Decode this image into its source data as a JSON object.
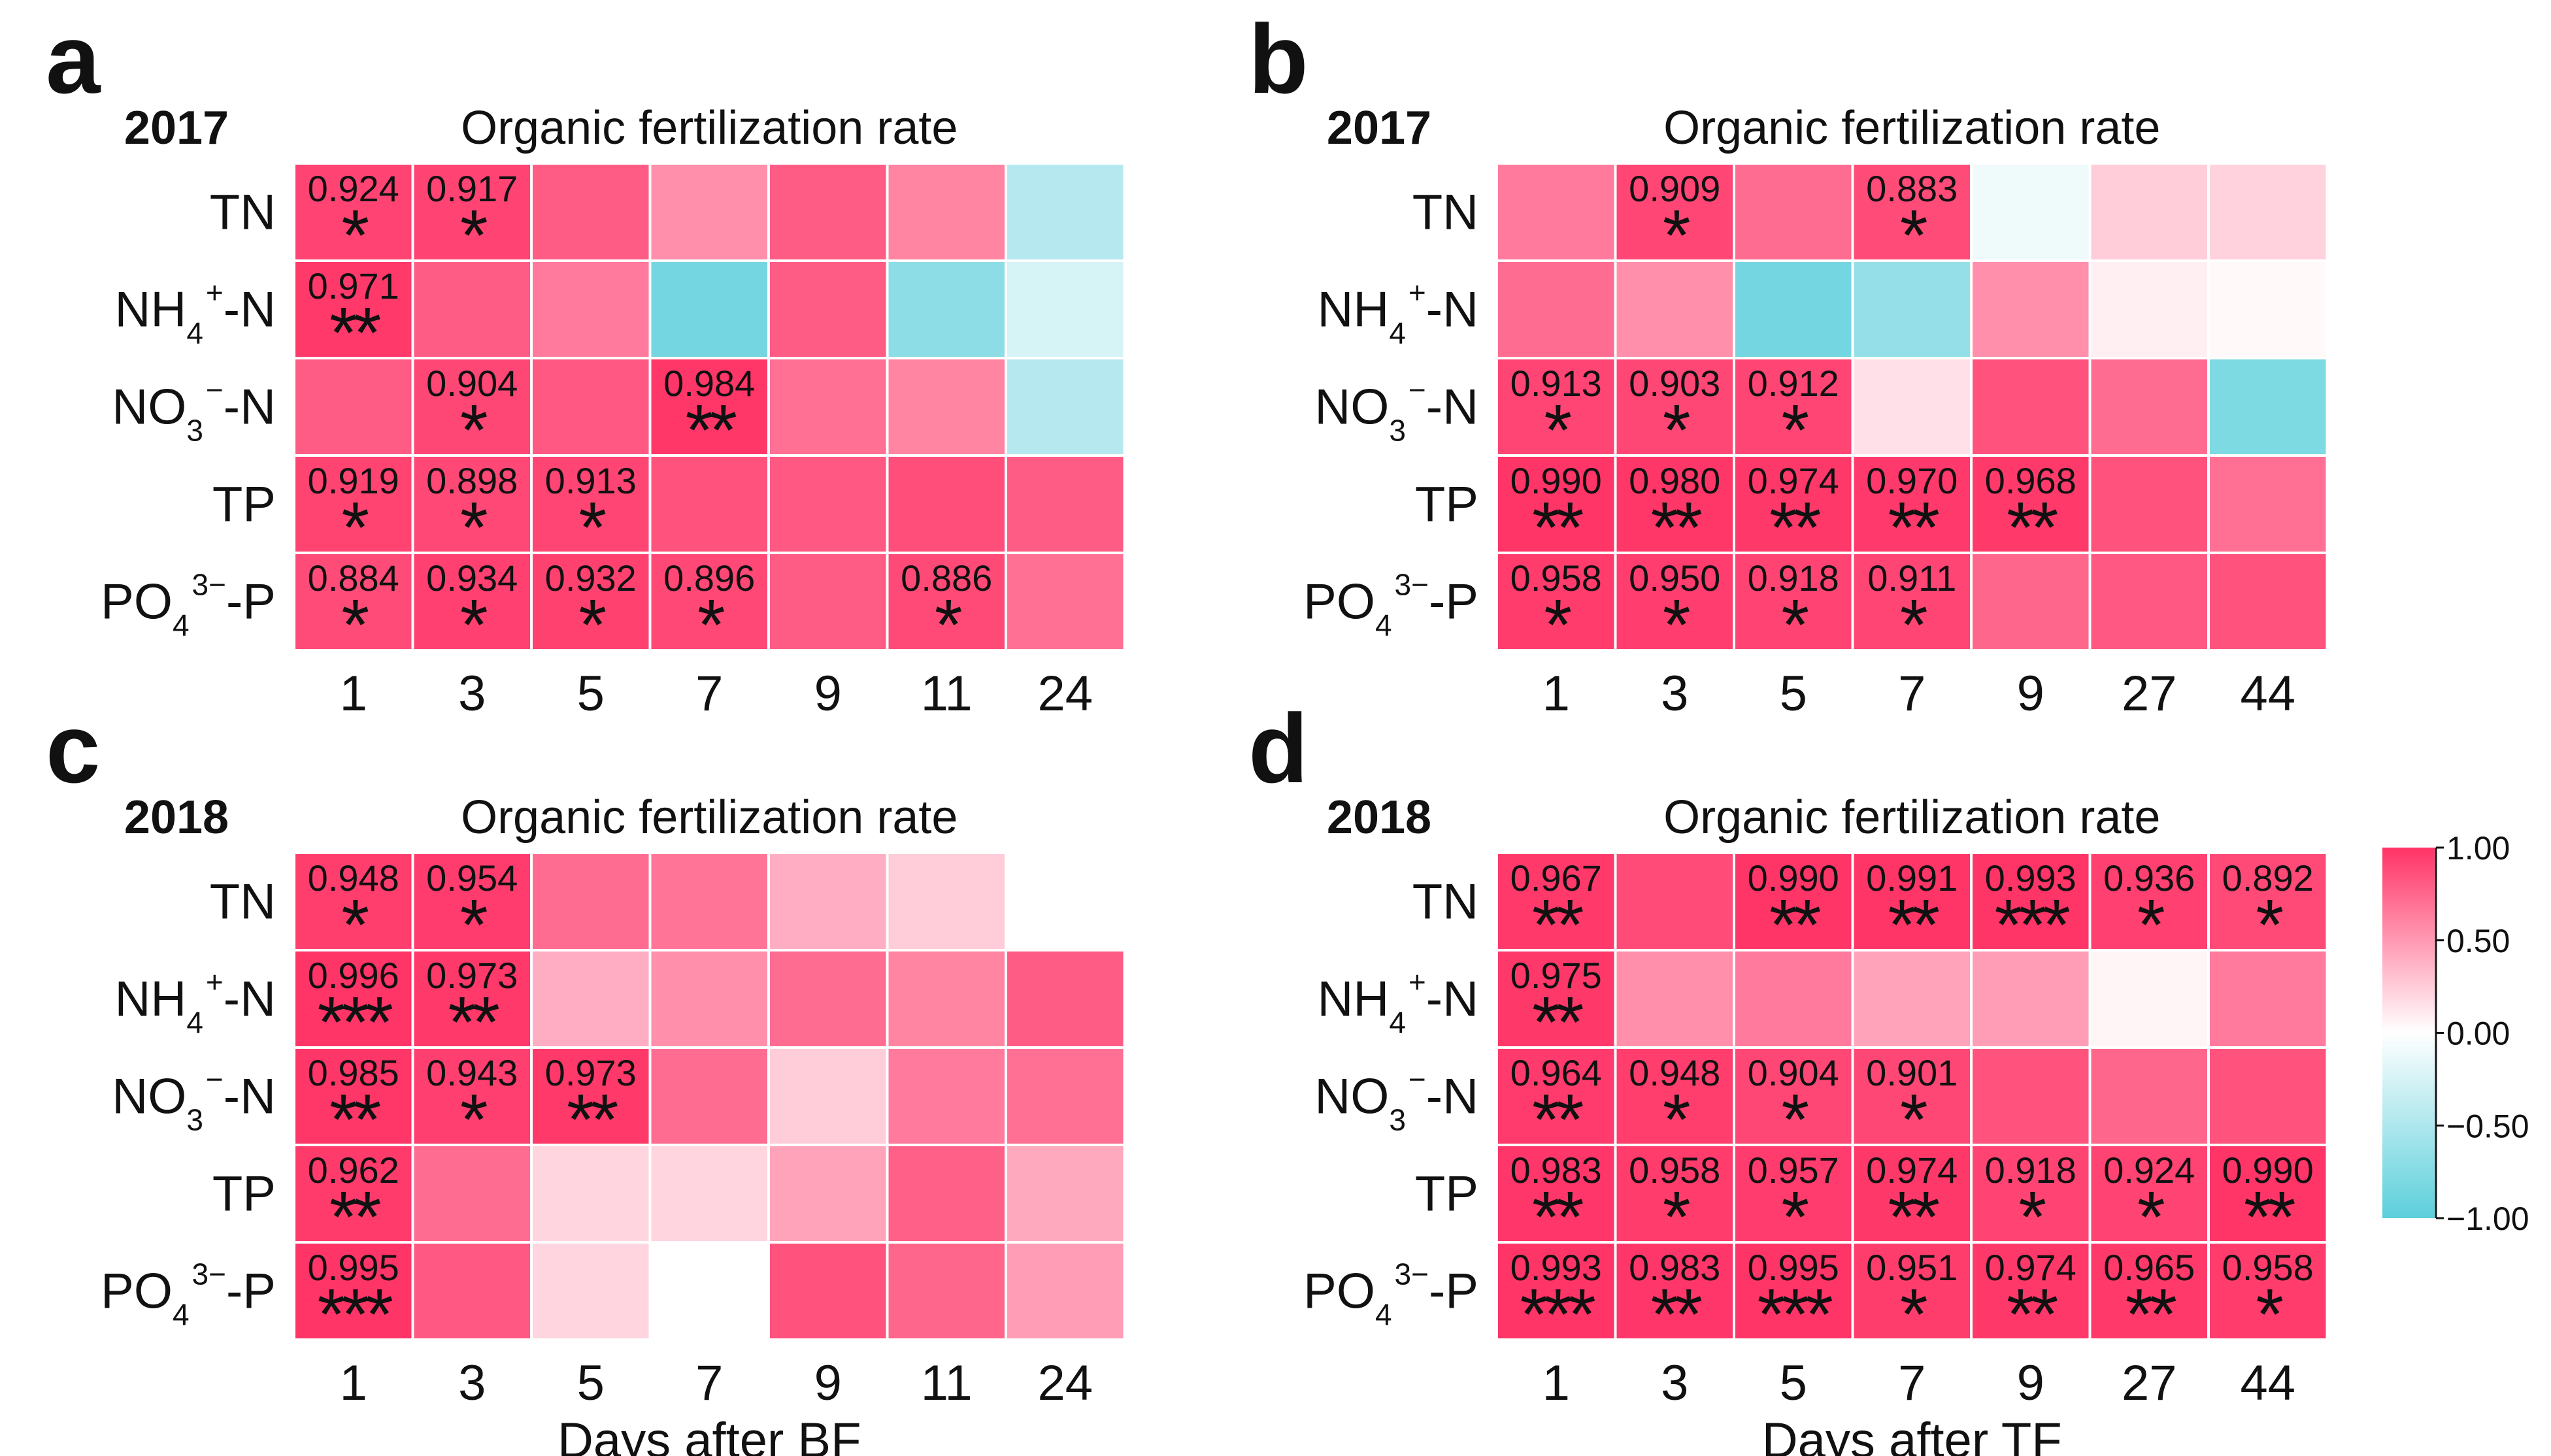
{
  "chart_data": {
    "type": "heatmap",
    "colorbar": {
      "min": -1,
      "max": 1,
      "ticks": [
        "1.00",
        "0.50",
        "0.00",
        "−0.50",
        "−1.00"
      ],
      "tick_values": [
        1,
        0.5,
        0,
        -0.5,
        -1
      ],
      "low_color": "#5ccfdb",
      "mid_color": "#ffffff",
      "high_color": "#ff3366"
    },
    "rows": [
      {
        "base": "TN",
        "sub": "",
        "sup": "",
        "tail": ""
      },
      {
        "base": "NH",
        "sub": "4",
        "sup": "+",
        "tail": "-N"
      },
      {
        "base": "NO",
        "sub": "3",
        "sup": "−",
        "tail": "-N"
      },
      {
        "base": "TP",
        "sub": "",
        "sup": "",
        "tail": ""
      },
      {
        "base": "PO",
        "sub": "4",
        "sup": "3−",
        "tail": "-P"
      }
    ],
    "panels": [
      {
        "letter": "a",
        "year": "2017",
        "title": "Organic fertilization rate",
        "xlabel": "",
        "columns": [
          "1",
          "3",
          "5",
          "7",
          "9",
          "11",
          "24"
        ],
        "values": [
          [
            0.924,
            0.917,
            0.8,
            0.55,
            0.8,
            0.6,
            -0.45
          ],
          [
            0.971,
            0.8,
            0.65,
            -0.85,
            0.8,
            -0.7,
            -0.25
          ],
          [
            0.8,
            0.904,
            0.82,
            0.984,
            0.7,
            0.6,
            -0.45
          ],
          [
            0.919,
            0.898,
            0.913,
            0.85,
            0.82,
            0.87,
            0.8
          ],
          [
            0.884,
            0.934,
            0.932,
            0.896,
            0.8,
            0.886,
            0.7
          ]
        ],
        "labels": [
          [
            "0.924",
            "0.917",
            "",
            "",
            "",
            "",
            ""
          ],
          [
            "0.971",
            "",
            "",
            "",
            "",
            "",
            ""
          ],
          [
            "",
            "0.904",
            "",
            "0.984",
            "",
            "",
            ""
          ],
          [
            "0.919",
            "0.898",
            "0.913",
            "",
            "",
            "",
            ""
          ],
          [
            "0.884",
            "0.934",
            "0.932",
            "0.896",
            "",
            "0.886",
            ""
          ]
        ],
        "significance": [
          [
            "*",
            "*",
            "",
            "",
            "",
            "",
            ""
          ],
          [
            "**",
            "",
            "",
            "",
            "",
            "",
            ""
          ],
          [
            "",
            "*",
            "",
            "**",
            "",
            "",
            ""
          ],
          [
            "*",
            "*",
            "*",
            "",
            "",
            "",
            ""
          ],
          [
            "*",
            "*",
            "*",
            "*",
            "",
            "*",
            ""
          ]
        ]
      },
      {
        "letter": "b",
        "year": "2017",
        "title": "Organic fertilization rate",
        "xlabel": "",
        "columns": [
          "1",
          "3",
          "5",
          "7",
          "9",
          "27",
          "44"
        ],
        "values": [
          [
            0.65,
            0.909,
            0.72,
            0.883,
            -0.1,
            0.25,
            0.22
          ],
          [
            0.72,
            0.55,
            -0.85,
            -0.65,
            0.55,
            0.08,
            0.03
          ],
          [
            0.913,
            0.903,
            0.912,
            0.15,
            0.85,
            0.72,
            -0.8
          ],
          [
            0.99,
            0.98,
            0.974,
            0.97,
            0.968,
            0.85,
            0.7
          ],
          [
            0.958,
            0.95,
            0.918,
            0.911,
            0.75,
            0.82,
            0.85
          ]
        ],
        "labels": [
          [
            "",
            "0.909",
            "",
            "0.883",
            "",
            "",
            ""
          ],
          [
            "",
            "",
            "",
            "",
            "",
            "",
            ""
          ],
          [
            "0.913",
            "0.903",
            "0.912",
            "",
            "",
            "",
            ""
          ],
          [
            "0.990",
            "0.980",
            "0.974",
            "0.970",
            "0.968",
            "",
            ""
          ],
          [
            "0.958",
            "0.950",
            "0.918",
            "0.911",
            "",
            "",
            ""
          ]
        ],
        "significance": [
          [
            "",
            "*",
            "",
            "*",
            "",
            "",
            ""
          ],
          [
            "",
            "",
            "",
            "",
            "",
            "",
            ""
          ],
          [
            "*",
            "*",
            "*",
            "",
            "",
            "",
            ""
          ],
          [
            "**",
            "**",
            "**",
            "**",
            "**",
            "",
            ""
          ],
          [
            "*",
            "*",
            "*",
            "*",
            "",
            "",
            ""
          ]
        ]
      },
      {
        "letter": "c",
        "year": "2018",
        "title": "Organic fertilization rate",
        "xlabel": "Days after BF",
        "columns": [
          "1",
          "3",
          "5",
          "7",
          "9",
          "11",
          "24"
        ],
        "values": [
          [
            0.948,
            0.954,
            0.72,
            0.68,
            0.4,
            0.25,
            null
          ],
          [
            0.996,
            0.973,
            0.4,
            0.55,
            0.72,
            0.6,
            0.8
          ],
          [
            0.985,
            0.943,
            0.973,
            0.72,
            0.25,
            0.65,
            0.7
          ],
          [
            0.962,
            0.72,
            0.2,
            0.2,
            0.45,
            0.78,
            0.42
          ],
          [
            0.995,
            0.82,
            0.2,
            null,
            0.85,
            0.75,
            0.48
          ]
        ],
        "labels": [
          [
            "0.948",
            "0.954",
            "",
            "",
            "",
            "",
            ""
          ],
          [
            "0.996",
            "0.973",
            "",
            "",
            "",
            "",
            ""
          ],
          [
            "0.985",
            "0.943",
            "0.973",
            "",
            "",
            "",
            ""
          ],
          [
            "0.962",
            "",
            "",
            "",
            "",
            "",
            ""
          ],
          [
            "0.995",
            "",
            "",
            "",
            "",
            "",
            ""
          ]
        ],
        "significance": [
          [
            "*",
            "*",
            "",
            "",
            "",
            "",
            ""
          ],
          [
            "***",
            "**",
            "",
            "",
            "",
            "",
            ""
          ],
          [
            "**",
            "*",
            "**",
            "",
            "",
            "",
            ""
          ],
          [
            "**",
            "",
            "",
            "",
            "",
            "",
            ""
          ],
          [
            "***",
            "",
            "",
            "",
            "",
            "",
            ""
          ]
        ]
      },
      {
        "letter": "d",
        "year": "2018",
        "title": "Organic fertilization rate",
        "xlabel": "Days after TF",
        "columns": [
          "1",
          "3",
          "5",
          "7",
          "9",
          "27",
          "44"
        ],
        "values": [
          [
            0.967,
            0.88,
            0.99,
            0.991,
            0.993,
            0.936,
            0.892
          ],
          [
            0.975,
            0.55,
            0.65,
            0.45,
            0.48,
            0.05,
            0.65
          ],
          [
            0.964,
            0.948,
            0.904,
            0.901,
            0.85,
            0.75,
            0.85
          ],
          [
            0.983,
            0.958,
            0.957,
            0.974,
            0.918,
            0.924,
            0.99
          ],
          [
            0.993,
            0.983,
            0.995,
            0.951,
            0.974,
            0.965,
            0.958
          ]
        ],
        "labels": [
          [
            "0.967",
            "",
            "0.990",
            "0.991",
            "0.993",
            "0.936",
            "0.892"
          ],
          [
            "0.975",
            "",
            "",
            "",
            "",
            "",
            ""
          ],
          [
            "0.964",
            "0.948",
            "0.904",
            "0.901",
            "",
            "",
            ""
          ],
          [
            "0.983",
            "0.958",
            "0.957",
            "0.974",
            "0.918",
            "0.924",
            "0.990"
          ],
          [
            "0.993",
            "0.983",
            "0.995",
            "0.951",
            "0.974",
            "0.965",
            "0.958"
          ]
        ],
        "significance": [
          [
            "**",
            "",
            "**",
            "**",
            "***",
            "*",
            "*"
          ],
          [
            "**",
            "",
            "",
            "",
            "",
            "",
            ""
          ],
          [
            "**",
            "*",
            "*",
            "*",
            "",
            "",
            ""
          ],
          [
            "**",
            "*",
            "*",
            "**",
            "*",
            "*",
            "**"
          ],
          [
            "***",
            "**",
            "***",
            "*",
            "**",
            "**",
            "*"
          ]
        ]
      }
    ]
  }
}
